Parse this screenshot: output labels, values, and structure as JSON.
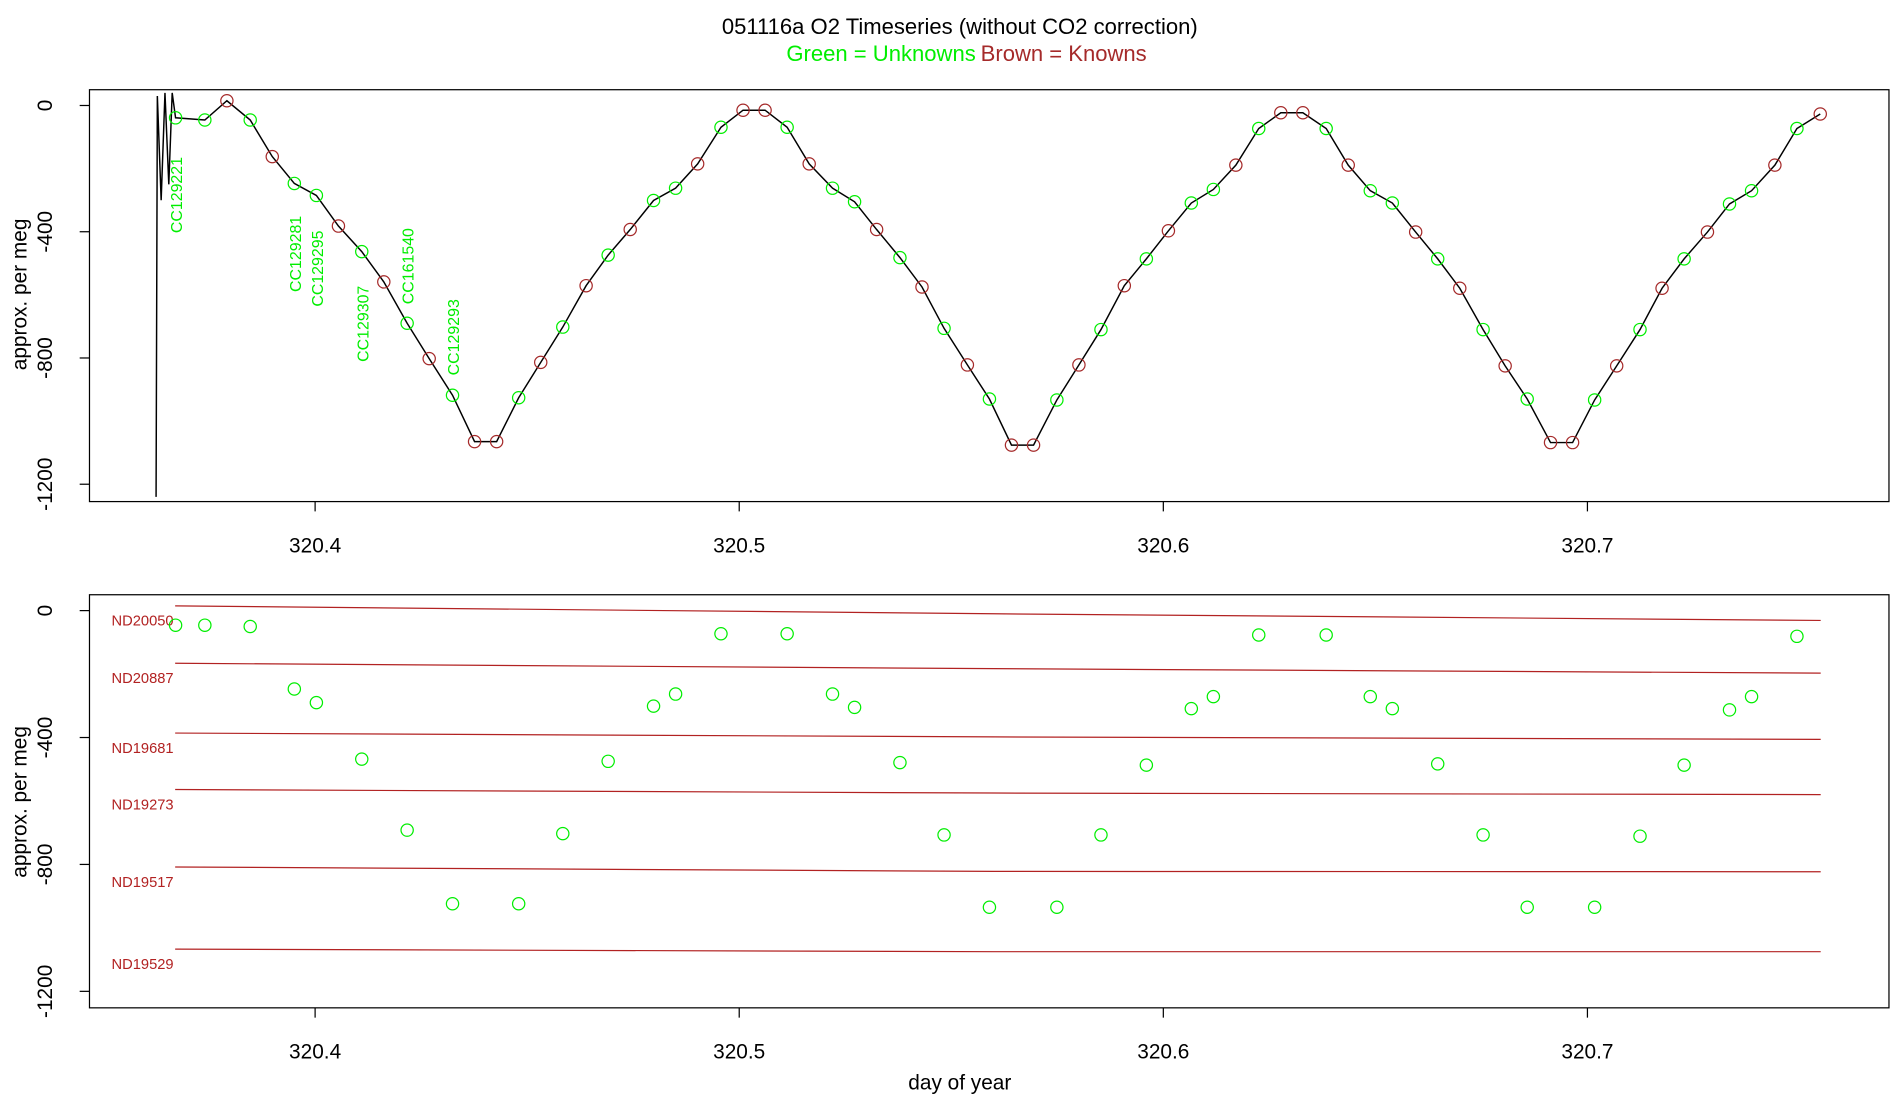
{
  "chart_data": [
    {
      "type": "line",
      "title": "051116a   O2 Timeseries (without CO2 correction)",
      "subtitle_green": "Green = Unknowns",
      "subtitle_brown": "Brown = Knowns",
      "y_label": "approx. per meg",
      "xlim": [
        320.3468,
        320.7711
      ],
      "ylim": [
        -1255,
        50
      ],
      "xticks": [
        320.4,
        320.5,
        320.6,
        320.7
      ],
      "yticks": [
        0,
        -400,
        -800,
        -1200
      ],
      "trace": {
        "color": "#000000",
        "x": [
          320.3625,
          320.3628,
          320.3637,
          320.3646,
          320.3655,
          320.3663,
          320.3671,
          320.374,
          320.3792,
          320.3847,
          320.3899,
          320.3951,
          320.4003,
          320.4055,
          320.411,
          320.4162,
          320.4217,
          320.4269,
          320.4324,
          320.4376,
          320.4428,
          320.448,
          320.4532,
          320.4584,
          320.4639,
          320.4691,
          320.4743,
          320.4798,
          320.485,
          320.4902,
          320.4957,
          320.5009,
          320.5061,
          320.5113,
          320.5165,
          320.522,
          320.5272,
          320.5324,
          320.5379,
          320.5431,
          320.5483,
          320.5538,
          320.559,
          320.5642,
          320.5694,
          320.5749,
          320.5801,
          320.5853,
          320.5908,
          320.596,
          320.6012,
          320.6066,
          320.6118,
          320.6171,
          320.6225,
          320.6277,
          320.6329,
          320.6384,
          320.6436,
          320.6488,
          320.654,
          320.6595,
          320.6647,
          320.6699,
          320.6754,
          320.6806,
          320.6858,
          320.6913,
          320.6965,
          320.7017,
          320.7069,
          320.7124,
          320.7176,
          320.7228,
          320.7283,
          320.7335,
          320.7387,
          320.7442,
          320.7494,
          320.7549
        ],
        "values": [
          -1240,
          30,
          -300,
          40,
          -250,
          40,
          -39,
          -46,
          15,
          -46,
          -162,
          -247,
          -285,
          -382,
          -463,
          -559,
          -690,
          -802,
          -918,
          -1065,
          -1065,
          -926,
          -814,
          -702,
          -571,
          -474,
          -393,
          -301,
          -262,
          -185,
          -69,
          -15,
          -15,
          -69,
          -185,
          -262,
          -305,
          -393,
          -482,
          -575,
          -706,
          -822,
          -930,
          -1076,
          -1076,
          -933,
          -822,
          -710,
          -571,
          -486,
          -397,
          -309,
          -266,
          -189,
          -73,
          -23,
          -23,
          -73,
          -189,
          -270,
          -309,
          -401,
          -486,
          -579,
          -710,
          -825,
          -930,
          -1068,
          -1068,
          -933,
          -825,
          -710,
          -579,
          -486,
          -401,
          -312,
          -270,
          -189,
          -73,
          -27
        ]
      },
      "unknowns": {
        "color": "#00ee00",
        "x": [
          320.3671,
          320.374,
          320.3847,
          320.3951,
          320.4003,
          320.411,
          320.4217,
          320.4324,
          320.448,
          320.4584,
          320.4691,
          320.4798,
          320.485,
          320.4957,
          320.5113,
          320.522,
          320.5272,
          320.5379,
          320.5483,
          320.559,
          320.5749,
          320.5853,
          320.596,
          320.6066,
          320.6118,
          320.6225,
          320.6384,
          320.6488,
          320.654,
          320.6647,
          320.6754,
          320.6858,
          320.7017,
          320.7124,
          320.7228,
          320.7335,
          320.7387,
          320.7494
        ],
        "values": [
          -39,
          -46,
          -46,
          -247,
          -285,
          -463,
          -690,
          -918,
          -926,
          -702,
          -474,
          -301,
          -262,
          -69,
          -69,
          -262,
          -305,
          -482,
          -706,
          -930,
          -933,
          -710,
          -486,
          -309,
          -266,
          -73,
          -73,
          -270,
          -309,
          -486,
          -710,
          -930,
          -933,
          -710,
          -486,
          -312,
          -270,
          -73
        ]
      },
      "knowns": {
        "color": "#a52a2a",
        "x": [
          320.3792,
          320.3899,
          320.4055,
          320.4162,
          320.4269,
          320.4376,
          320.4428,
          320.4532,
          320.4639,
          320.4743,
          320.4902,
          320.5009,
          320.5061,
          320.5165,
          320.5324,
          320.5431,
          320.5538,
          320.5642,
          320.5694,
          320.5801,
          320.5908,
          320.6012,
          320.6171,
          320.6277,
          320.6329,
          320.6436,
          320.6595,
          320.6699,
          320.6806,
          320.6913,
          320.6965,
          320.7069,
          320.7176,
          320.7283,
          320.7442,
          320.7549
        ],
        "values": [
          15,
          -162,
          -382,
          -559,
          -802,
          -1065,
          -1065,
          -814,
          -571,
          -393,
          -185,
          -15,
          -15,
          -185,
          -393,
          -575,
          -822,
          -1076,
          -1076,
          -822,
          -571,
          -397,
          -189,
          -23,
          -23,
          -189,
          -401,
          -579,
          -825,
          -1068,
          -1068,
          -825,
          -579,
          -401,
          -189,
          -27
        ]
      },
      "annotations": [
        "CC129221",
        "CC129281",
        "CC129295",
        "CC129307",
        "CC161540",
        "CC129293"
      ]
    },
    {
      "type": "scatter",
      "x_label": "day of year",
      "y_label": "approx. per meg",
      "xlim": [
        320.3468,
        320.7711
      ],
      "ylim": [
        -1252,
        50
      ],
      "xticks": [
        320.4,
        320.5,
        320.6,
        320.7
      ],
      "yticks": [
        0,
        -400,
        -800,
        -1200
      ],
      "unknowns": {
        "color": "#00ee00",
        "x": [
          320.3671,
          320.374,
          320.3847,
          320.3951,
          320.4003,
          320.411,
          320.4217,
          320.4324,
          320.448,
          320.4584,
          320.4691,
          320.4798,
          320.485,
          320.4957,
          320.5113,
          320.522,
          320.5272,
          320.5379,
          320.5483,
          320.559,
          320.5749,
          320.5853,
          320.596,
          320.6066,
          320.6118,
          320.6225,
          320.6384,
          320.6488,
          320.654,
          320.6647,
          320.6754,
          320.6858,
          320.7017,
          320.7124,
          320.7228,
          320.7335,
          320.7387,
          320.7494
        ],
        "values": [
          -46,
          -46,
          -50,
          -247,
          -290,
          -468,
          -692,
          -924,
          -924,
          -703,
          -475,
          -301,
          -263,
          -73,
          -73,
          -263,
          -305,
          -479,
          -707,
          -935,
          -935,
          -707,
          -487,
          -309,
          -271,
          -77,
          -77,
          -271,
          -309,
          -483,
          -707,
          -935,
          -935,
          -711,
          -487,
          -313,
          -271,
          -81
        ]
      },
      "reference_lines": [
        {
          "label": "ND20050",
          "color": "#b22222",
          "x": [
            320.367,
            320.56,
            320.755
          ],
          "values": [
            15,
            -10,
            -31
          ]
        },
        {
          "label": "ND20887",
          "color": "#b22222",
          "x": [
            320.367,
            320.56,
            320.755
          ],
          "values": [
            -166,
            -183,
            -197
          ]
        },
        {
          "label": "ND19681",
          "color": "#b22222",
          "x": [
            320.367,
            320.56,
            320.755
          ],
          "values": [
            -386,
            -398,
            -406
          ]
        },
        {
          "label": "ND19273",
          "color": "#b22222",
          "x": [
            320.367,
            320.56,
            320.755
          ],
          "values": [
            -564,
            -575,
            -580
          ]
        },
        {
          "label": "ND19517",
          "color": "#b22222",
          "x": [
            320.367,
            320.56,
            320.755
          ],
          "values": [
            -808,
            -822,
            -823
          ]
        },
        {
          "label": "ND19529",
          "color": "#b22222",
          "x": [
            320.367,
            320.56,
            320.755
          ],
          "values": [
            -1067,
            -1075,
            -1075
          ]
        }
      ]
    }
  ]
}
